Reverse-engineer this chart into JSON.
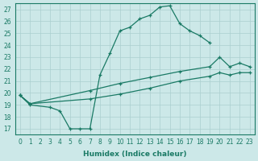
{
  "xlabel": "Humidex (Indice chaleur)",
  "xlim": [
    -0.5,
    23.5
  ],
  "ylim": [
    16.5,
    27.5
  ],
  "xticks": [
    0,
    1,
    2,
    3,
    4,
    5,
    6,
    7,
    8,
    9,
    10,
    11,
    12,
    13,
    14,
    15,
    16,
    17,
    18,
    19,
    20,
    21,
    22,
    23
  ],
  "yticks": [
    17,
    18,
    19,
    20,
    21,
    22,
    23,
    24,
    25,
    26,
    27
  ],
  "bg_color": "#cce8e8",
  "grid_color": "#aacfcf",
  "line_color": "#1a7a65",
  "curve1_x": [
    0,
    1,
    3,
    4,
    5,
    6,
    7,
    8,
    9,
    10,
    11,
    12,
    13,
    14,
    15,
    16,
    17,
    18,
    19
  ],
  "curve1_y": [
    19.8,
    19.0,
    18.8,
    18.5,
    17.0,
    17.0,
    17.0,
    21.5,
    23.3,
    25.2,
    25.5,
    26.2,
    26.5,
    27.2,
    27.3,
    25.8,
    25.2,
    24.8,
    24.2
  ],
  "curve2_x": [
    0,
    1,
    7,
    10,
    13,
    16,
    19,
    20,
    21,
    22,
    23
  ],
  "curve2_y": [
    19.8,
    19.1,
    20.2,
    20.8,
    21.3,
    21.8,
    22.2,
    23.0,
    22.2,
    22.5,
    22.2
  ],
  "curve3_x": [
    0,
    1,
    7,
    10,
    13,
    16,
    19,
    20,
    21,
    22,
    23
  ],
  "curve3_y": [
    19.8,
    19.1,
    19.5,
    19.9,
    20.4,
    21.0,
    21.4,
    21.7,
    21.5,
    21.7,
    21.7
  ]
}
